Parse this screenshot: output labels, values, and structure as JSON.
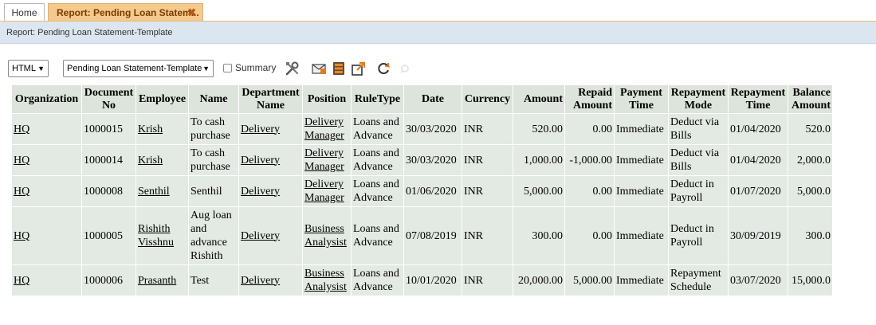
{
  "tabs": {
    "home": "Home",
    "report": "Report: Pending Loan Statem...",
    "close": "✖"
  },
  "breadcrumb": "Report: Pending Loan Statement-Template",
  "toolbar": {
    "format": "HTML",
    "template": "Pending Loan Statement-Template",
    "summary_label": "Summary",
    "icons": [
      "tools-icon",
      "email-icon",
      "export-icon",
      "share-icon",
      "refresh-icon",
      "pin-icon"
    ]
  },
  "table": {
    "columns": [
      "Organization",
      "Document No",
      "Employee",
      "Name",
      "Department Name",
      "Position",
      "RuleType",
      "Date",
      "Currency",
      "Amount",
      "Repaid Amount",
      "Payment Time",
      "Repayment Mode",
      "Repayment Time",
      "Balance Amount"
    ],
    "rows": [
      {
        "org": "HQ",
        "doc": "1000015",
        "emp": "Krish",
        "name": "To cash purchase",
        "dept": "Delivery",
        "pos": "Delivery Manager",
        "rule": "Loans and Advance",
        "date": "30/03/2020",
        "cur": "INR",
        "amt": "520.00",
        "repaid": "0.00",
        "ptime": "Immediate",
        "mode": "Deduct via Bills",
        "rtime": "01/04/2020",
        "bal": "520.0"
      },
      {
        "org": "HQ",
        "doc": "1000014",
        "emp": "Krish",
        "name": "To cash purchase",
        "dept": "Delivery",
        "pos": "Delivery Manager",
        "rule": "Loans and Advance",
        "date": "30/03/2020",
        "cur": "INR",
        "amt": "1,000.00",
        "repaid": "-1,000.00",
        "ptime": "Immediate",
        "mode": "Deduct via Bills",
        "rtime": "01/04/2020",
        "bal": "2,000.0"
      },
      {
        "org": "HQ",
        "doc": "1000008",
        "emp": "Senthil",
        "name": "Senthil",
        "dept": "Delivery",
        "pos": "Delivery Manager",
        "rule": "Loans and Advance",
        "date": "01/06/2020",
        "cur": "INR",
        "amt": "5,000.00",
        "repaid": "0.00",
        "ptime": "Immediate",
        "mode": "Deduct in Payroll",
        "rtime": "01/07/2020",
        "bal": "5,000.0"
      },
      {
        "org": "HQ",
        "doc": "1000005",
        "emp": "Rishith Visshnu",
        "name": "Aug loan and advance Rishith",
        "dept": "Delivery",
        "pos": "Business Analysist",
        "rule": "Loans and Advance",
        "date": "07/08/2019",
        "cur": "INR",
        "amt": "300.00",
        "repaid": "0.00",
        "ptime": "Immediate",
        "mode": "Deduct in Payroll",
        "rtime": "30/09/2019",
        "bal": "300.0"
      },
      {
        "org": "HQ",
        "doc": "1000006",
        "emp": "Prasanth",
        "name": "Test",
        "dept": "Delivery",
        "pos": "Business Analysist",
        "rule": "Loans and Advance",
        "date": "10/01/2020",
        "cur": "INR",
        "amt": "20,000.00",
        "repaid": "5,000.00",
        "ptime": "Immediate",
        "mode": "Repayment Schedule",
        "rtime": "03/07/2020",
        "bal": "15,000.0"
      }
    ]
  }
}
